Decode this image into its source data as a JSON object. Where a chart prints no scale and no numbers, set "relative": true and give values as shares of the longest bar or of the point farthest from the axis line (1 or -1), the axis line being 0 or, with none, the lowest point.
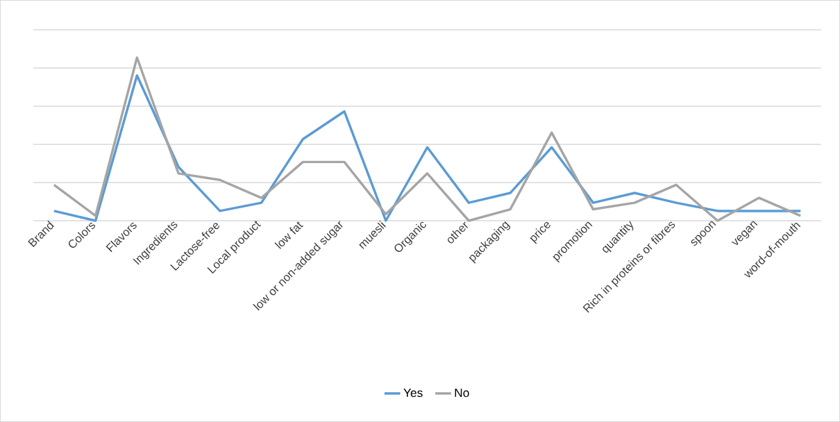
{
  "chart_data": {
    "type": "line",
    "relative": true,
    "grid": "y",
    "legend": "bottom",
    "marker": "none",
    "line_style": "solid",
    "categories": [
      "Brand",
      "Colors",
      "Flavors",
      "Ingredients",
      "Lactose-free",
      "Local product",
      "low fat",
      "low or non-added sugar",
      "muesli",
      "Organic",
      "other",
      "packaging",
      "price",
      "promotion",
      "quantity",
      "Rich in proteins or fibres",
      "spoon",
      "vegan",
      "word-of-mouth"
    ],
    "series": [
      {
        "name": "Yes",
        "color": "#5b9bd5",
        "values": [
          0.06,
          0,
          0.89,
          0.33,
          0.06,
          0.11,
          0.5,
          0.67,
          0,
          0.45,
          0.11,
          0.17,
          0.45,
          0.11,
          0.17,
          0.11,
          0.06,
          0.06,
          0.06
        ]
      },
      {
        "name": "No",
        "color": "#a5a5a5",
        "values": [
          0.22,
          0.03,
          1.0,
          0.29,
          0.25,
          0.14,
          0.36,
          0.36,
          0.04,
          0.29,
          0,
          0.07,
          0.54,
          0.07,
          0.11,
          0.22,
          0,
          0.14,
          0.03
        ]
      }
    ]
  }
}
